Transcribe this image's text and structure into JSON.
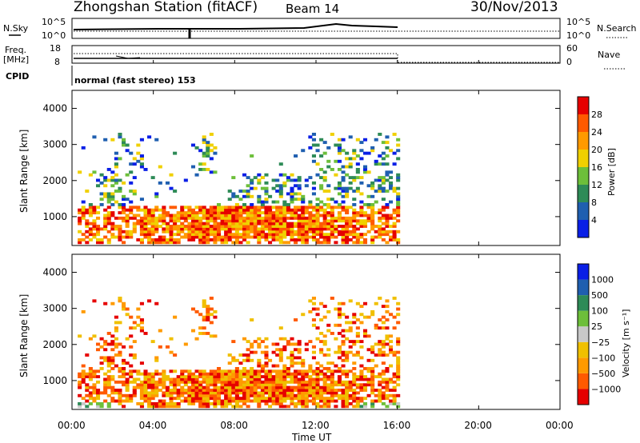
{
  "header": {
    "title": "Zhongshan Station (fitACF)",
    "beam": "Beam 14",
    "date": "30/Nov/2013"
  },
  "top_panels": {
    "nsky_label": "N.Sky",
    "nsky_ticks": [
      "10^5",
      "10^0"
    ],
    "nsearch_label": "N.Search",
    "nsearch_ticks": [
      "10^5",
      "10^0"
    ],
    "freq_label_1": "Freq.",
    "freq_label_2": "[MHz]",
    "freq_ticks": [
      "18",
      "8"
    ],
    "nave_label": "Nave",
    "nave_ticks": [
      "60",
      "0"
    ],
    "cpid_label": "CPID",
    "cpid_text": "normal (fast stereo) 153"
  },
  "colors": {
    "power_scale": [
      "#0a1fe6",
      "#1f5fb0",
      "#2e8b57",
      "#6dbf3a",
      "#f0d000",
      "#ff9a00",
      "#ff5a00",
      "#e60000"
    ],
    "velocity_scale": [
      "#e60000",
      "#ff5a00",
      "#ff9a00",
      "#f0c000",
      "#c8c8c8",
      "#6dbf3a",
      "#2e8b57",
      "#1f5fb0",
      "#0a1fe6"
    ]
  },
  "chart_data": [
    {
      "type": "heatmap",
      "name": "power",
      "ylabel": "Slant Range [km]",
      "yticks": [
        "1000",
        "2000",
        "3000",
        "4000"
      ],
      "ylim": [
        200,
        4500
      ],
      "xlim": [
        "00:00",
        "24:00"
      ],
      "colorbar_label": "Power [dB]",
      "colorbar_ticks": [
        "4",
        "8",
        "12",
        "16",
        "20",
        "24",
        "28"
      ],
      "data_coverage_hours": [
        0,
        16.1
      ]
    },
    {
      "type": "heatmap",
      "name": "velocity",
      "ylabel": "Slant Range [km]",
      "yticks": [
        "1000",
        "2000",
        "3000",
        "4000"
      ],
      "ylim": [
        200,
        4500
      ],
      "xlim": [
        "00:00",
        "24:00"
      ],
      "colorbar_label": "Velocity [m s⁻¹]",
      "colorbar_ticks": [
        "1000",
        "500",
        "100",
        "25",
        "−25",
        "−100",
        "−500",
        "−1000"
      ],
      "data_coverage_hours": [
        0,
        16.1
      ]
    }
  ],
  "xaxis": {
    "ticks": [
      "00:00",
      "04:00",
      "08:00",
      "12:00",
      "16:00",
      "20:00",
      "00:00"
    ],
    "label": "Time UT"
  }
}
